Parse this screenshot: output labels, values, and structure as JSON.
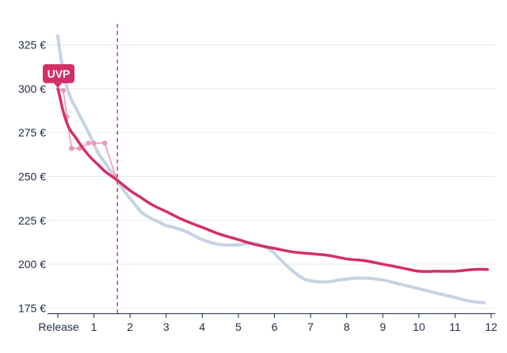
{
  "chart_data": {
    "type": "line",
    "title": "",
    "xlabel": "",
    "ylabel": "",
    "grid": true,
    "xlim": [
      0,
      12
    ],
    "ylim": [
      172,
      337
    ],
    "x_ticks": [
      {
        "value": 0,
        "label": "Release"
      },
      {
        "value": 1,
        "label": "1"
      },
      {
        "value": 2,
        "label": "2"
      },
      {
        "value": 3,
        "label": "3"
      },
      {
        "value": 4,
        "label": "4"
      },
      {
        "value": 5,
        "label": "5"
      },
      {
        "value": 6,
        "label": "6"
      },
      {
        "value": 7,
        "label": "7"
      },
      {
        "value": 8,
        "label": "8"
      },
      {
        "value": 9,
        "label": "9"
      },
      {
        "value": 10,
        "label": "10"
      },
      {
        "value": 11,
        "label": "11"
      },
      {
        "value": 12,
        "label": "12"
      }
    ],
    "y_ticks": [
      {
        "value": 175,
        "label": "175 €"
      },
      {
        "value": 200,
        "label": "200 €"
      },
      {
        "value": 225,
        "label": "225 €"
      },
      {
        "value": 250,
        "label": "250 €"
      },
      {
        "value": 275,
        "label": "275 €"
      },
      {
        "value": 300,
        "label": "300 €"
      },
      {
        "value": 325,
        "label": "325 €"
      }
    ],
    "marker_line_x": 1.65,
    "series": [
      {
        "color": "#c5d3e3",
        "x": [
          0,
          0.08,
          0.2,
          0.35,
          0.5,
          0.7,
          0.9,
          1.1,
          1.3,
          1.5,
          1.7,
          1.9,
          2.1,
          2.3,
          2.5,
          2.8,
          3.0,
          3.2,
          3.5,
          3.8,
          4.0,
          4.3,
          4.6,
          5.0,
          5.3,
          5.6,
          5.9,
          6.1,
          6.4,
          6.7,
          6.9,
          7.2,
          7.5,
          7.8,
          8.2,
          8.6,
          9.0,
          9.4,
          9.8,
          10.2,
          10.6,
          11.0,
          11.4,
          11.8
        ],
        "y": [
          330,
          318,
          305,
          295,
          289,
          281,
          273,
          264,
          258,
          252,
          246,
          240,
          235,
          230,
          227,
          224,
          222,
          221,
          219,
          216,
          214,
          212,
          211,
          211,
          212,
          211,
          208,
          204,
          198,
          193,
          191,
          190,
          190,
          191,
          192,
          192,
          191,
          189,
          187,
          185,
          183,
          181,
          179,
          178
        ]
      },
      {
        "color": "#ea9ab8",
        "x": [
          0,
          0.15,
          0.25,
          0.38,
          0.6,
          0.85,
          1.0,
          1.3,
          1.6
        ],
        "y": [
          300,
          299,
          284,
          266,
          266,
          269,
          269,
          269,
          250
        ]
      },
      {
        "color": "#d42e69",
        "x": [
          0,
          0.05,
          0.15,
          0.3,
          0.5,
          0.7,
          0.9,
          1.1,
          1.3,
          1.5,
          1.7,
          2.0,
          2.3,
          2.6,
          3.0,
          3.5,
          4.0,
          4.5,
          5.0,
          5.5,
          6.0,
          6.5,
          7.0,
          7.5,
          8.0,
          8.5,
          9.0,
          9.5,
          10.0,
          10.5,
          11.0,
          11.5,
          11.9
        ],
        "y": [
          300,
          296,
          287,
          278,
          272,
          266,
          261,
          257,
          253,
          250,
          247,
          242,
          238,
          234,
          230,
          225,
          221,
          217,
          214,
          211,
          209,
          207,
          206,
          205,
          203,
          202,
          200,
          198,
          196,
          196,
          196,
          197,
          197
        ]
      }
    ],
    "annotation": {
      "label": "UVP",
      "x": 0,
      "y": 300
    }
  }
}
